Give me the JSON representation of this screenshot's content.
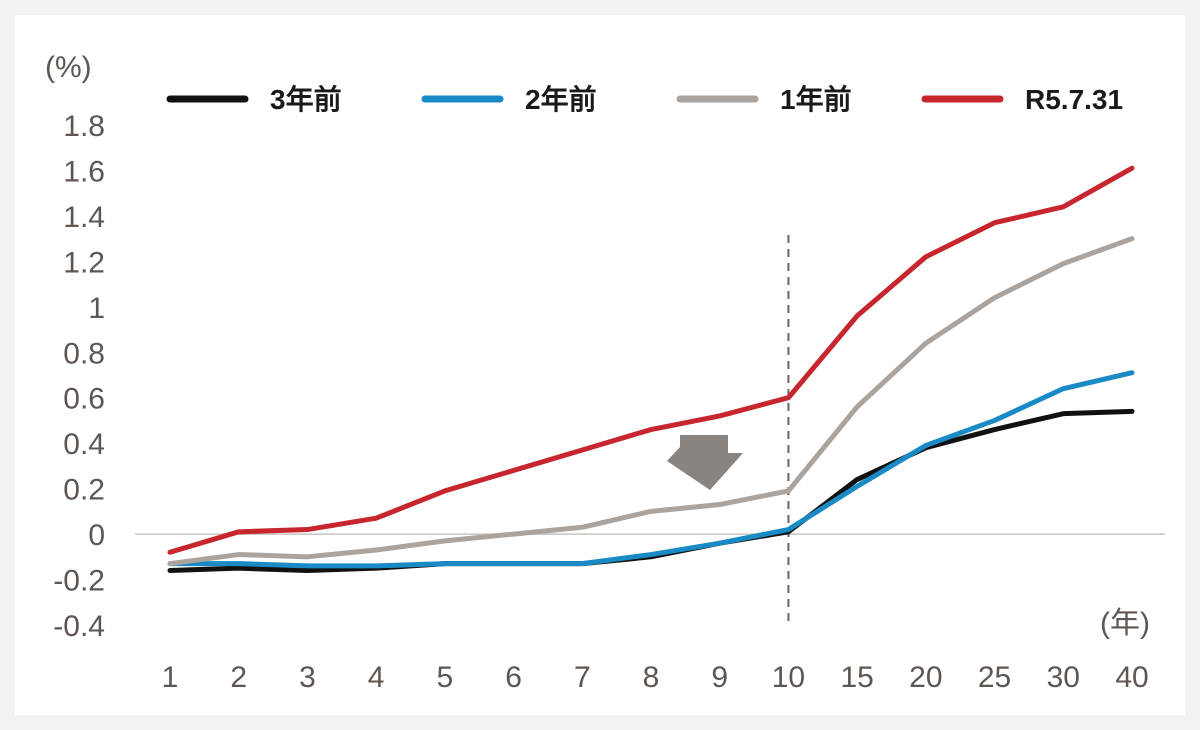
{
  "chart_data": {
    "type": "line",
    "y_unit": "(%)",
    "x_unit": "(年)",
    "categories": [
      "1",
      "2",
      "3",
      "4",
      "5",
      "6",
      "7",
      "8",
      "9",
      "10",
      "15",
      "20",
      "25",
      "30",
      "40"
    ],
    "ylim": [
      -0.4,
      1.8
    ],
    "yticks": [
      "1.8",
      "1.6",
      "1.4",
      "1.2",
      "1",
      "0.8",
      "0.6",
      "0.4",
      "0.2",
      "0",
      "-0.2",
      "-0.4"
    ],
    "ytick_values": [
      1.8,
      1.6,
      1.4,
      1.2,
      1.0,
      0.8,
      0.6,
      0.4,
      0.2,
      0,
      -0.2,
      -0.4
    ],
    "legend_placement": "top",
    "divider_after_category": "10",
    "series": [
      {
        "name": "3年前",
        "color": "#111111",
        "values": [
          -0.16,
          -0.15,
          -0.16,
          -0.15,
          -0.13,
          -0.13,
          -0.13,
          -0.1,
          -0.04,
          0.01,
          0.24,
          0.38,
          0.46,
          0.53,
          0.54
        ]
      },
      {
        "name": "2年前",
        "color": "#1a8ac6",
        "values": [
          -0.13,
          -0.13,
          -0.14,
          -0.14,
          -0.13,
          -0.13,
          -0.13,
          -0.09,
          -0.04,
          0.02,
          0.21,
          0.39,
          0.5,
          0.64,
          0.71
        ]
      },
      {
        "name": "1年前",
        "color": "#aaa39e",
        "values": [
          -0.13,
          -0.09,
          -0.1,
          -0.07,
          -0.03,
          0.0,
          0.03,
          0.1,
          0.13,
          0.19,
          0.56,
          0.84,
          1.04,
          1.19,
          1.3
        ]
      },
      {
        "name": "R5.7.31",
        "color": "#c7262e",
        "values": [
          -0.08,
          0.01,
          0.02,
          0.07,
          0.19,
          0.28,
          0.37,
          0.46,
          0.52,
          0.6,
          0.96,
          1.22,
          1.37,
          1.44,
          1.61
        ]
      }
    ]
  }
}
